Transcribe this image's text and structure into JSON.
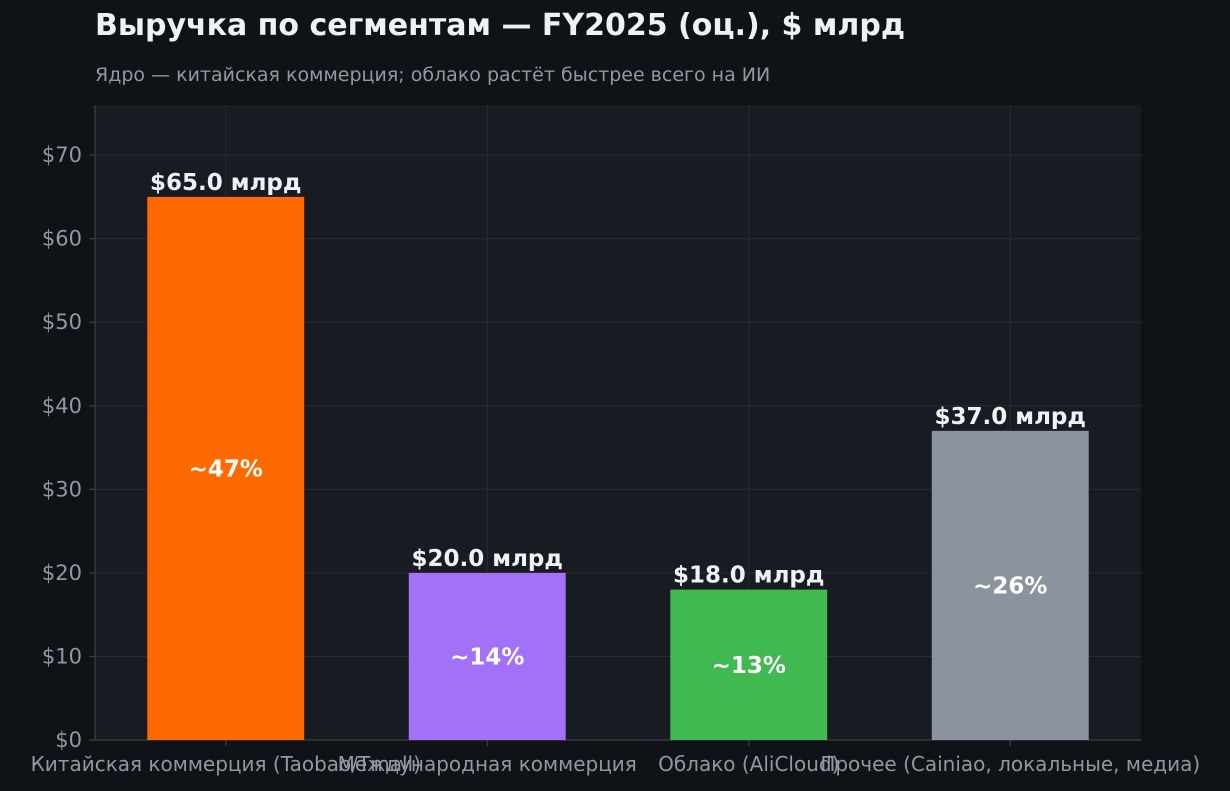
{
  "chart_data": {
    "type": "bar",
    "title": "Выручка по сегментам — FY2025 (оц.), $ млрд",
    "subtitle": "Ядро — китайская коммерция; облако растёт быстрее всего на ИИ",
    "xlabel": "",
    "ylabel": "",
    "categories": [
      "Китайская коммерция (Taobao/Tmall)",
      "Международная коммерция",
      "Облако (AliCloud)",
      "Прочее (Cainiao, локальные, медиа)"
    ],
    "values": [
      65.0,
      20.0,
      18.0,
      37.0
    ],
    "value_labels": [
      "$65.0 млрд",
      "$20.0 млрд",
      "$18.0 млрд",
      "$37.0 млрд"
    ],
    "share_labels": [
      "~47%",
      "~14%",
      "~13%",
      "~26%"
    ],
    "colors": [
      "#ff6a00",
      "#a371f7",
      "#3fb950",
      "#8b949e"
    ],
    "ylim": [
      0,
      76
    ],
    "yticks": [
      0,
      10,
      20,
      30,
      40,
      50,
      60,
      70
    ],
    "ytick_labels": [
      "$0",
      "$10",
      "$20",
      "$30",
      "$40",
      "$50",
      "$60",
      "$70"
    ],
    "grid": true,
    "legend": "none"
  },
  "theme": {
    "plot_bg": "#181c22",
    "grid": "#252b33",
    "axis": "#3a4049",
    "tick_text": "#8f98a3",
    "label_text": "#eef2f6"
  }
}
